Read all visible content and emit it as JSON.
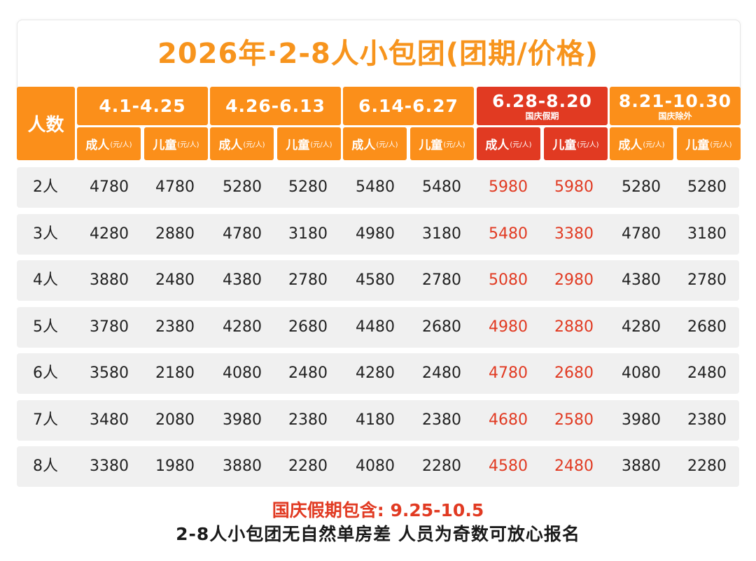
{
  "title": "2026年·2-8人小包团(团期/价格)",
  "header": {
    "people_label": "人数",
    "adult_label": "成人",
    "child_label": "儿童",
    "unit_label": "(元/人)",
    "periods": [
      {
        "range": "4.1-4.25",
        "note": ""
      },
      {
        "range": "4.26-6.13",
        "note": ""
      },
      {
        "range": "6.14-6.27",
        "note": ""
      },
      {
        "range": "6.28-8.20",
        "note": "国庆假期"
      },
      {
        "range": "8.21-10.30",
        "note": "国庆除外"
      }
    ]
  },
  "rows": [
    {
      "people": "2人",
      "prices": [
        "4780",
        "4780",
        "5280",
        "5280",
        "5480",
        "5480",
        "5980",
        "5980",
        "5280",
        "5280"
      ]
    },
    {
      "people": "3人",
      "prices": [
        "4280",
        "2880",
        "4780",
        "3180",
        "4980",
        "3180",
        "5480",
        "3380",
        "4780",
        "3180"
      ]
    },
    {
      "people": "4人",
      "prices": [
        "3880",
        "2480",
        "4380",
        "2780",
        "4580",
        "2780",
        "5080",
        "2980",
        "4380",
        "2780"
      ]
    },
    {
      "people": "5人",
      "prices": [
        "3780",
        "2380",
        "4280",
        "2680",
        "4480",
        "2680",
        "4980",
        "2880",
        "4280",
        "2680"
      ]
    },
    {
      "people": "6人",
      "prices": [
        "3580",
        "2180",
        "4080",
        "2480",
        "4280",
        "2480",
        "4780",
        "2680",
        "4080",
        "2480"
      ]
    },
    {
      "people": "7人",
      "prices": [
        "3480",
        "2080",
        "3980",
        "2380",
        "4180",
        "2380",
        "4680",
        "2580",
        "3980",
        "2380"
      ]
    },
    {
      "people": "8人",
      "prices": [
        "3380",
        "1980",
        "3880",
        "2280",
        "4080",
        "2280",
        "4580",
        "2480",
        "3880",
        "2280"
      ]
    }
  ],
  "footer": {
    "holiday_note": "国庆假期包含: 9.25-10.5",
    "info": "2-8人小包团无自然单房差 人员为奇数可放心报名"
  },
  "colors": {
    "orange": "#fb8f1a",
    "red": "#e13a22",
    "title": "#f7941d"
  }
}
